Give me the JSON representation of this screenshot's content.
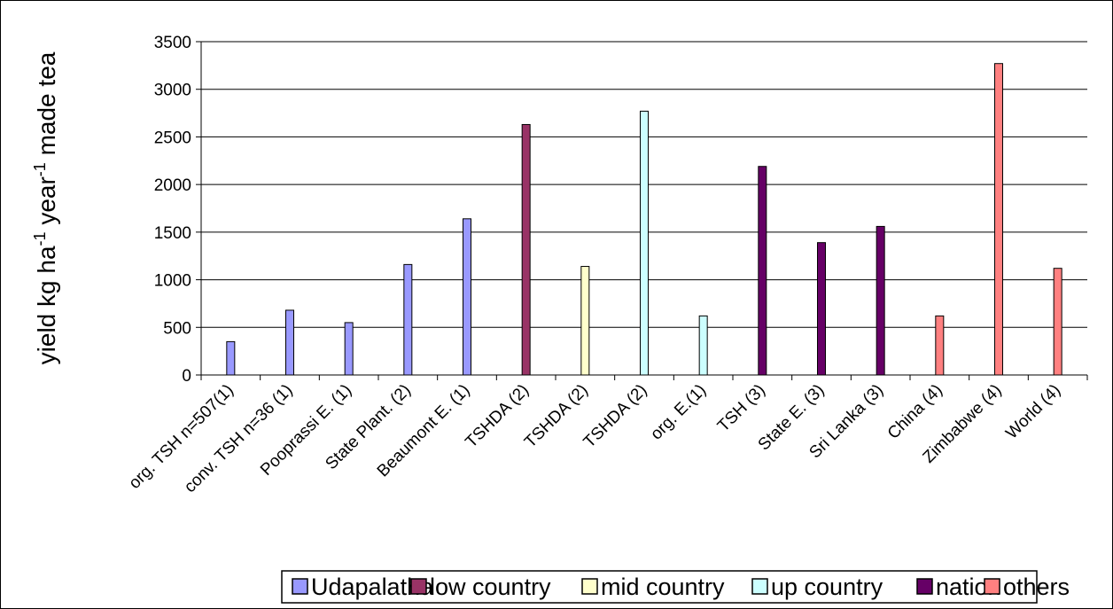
{
  "chart_data": {
    "type": "bar",
    "ylabel": {
      "prefix": "yield kg ha",
      "sup1": "-1",
      "middle": " year",
      "sup2": "-1",
      "suffix": " made tea"
    },
    "ylim": [
      0,
      3500
    ],
    "y_ticks": [
      0,
      500,
      1000,
      1500,
      2000,
      2500,
      3000,
      3500
    ],
    "grid": true,
    "legend_position": "bottom",
    "categories": [
      "org. TSH n=507(1)",
      "conv. TSH n=36 (1)",
      "Pooprassi E. (1)",
      "State Plant. (2)",
      "Beaumont E. (1)",
      "TSHDA (2)",
      "TSHDA (2)",
      "TSHDA (2)",
      "org. E.(1)",
      "TSH (3)",
      "State E. (3)",
      "Sri Lanka (3)",
      "China (4)",
      "Zimbabwe (4)",
      "World (4)"
    ],
    "series": [
      {
        "name": "Udapalatha",
        "color": "#9999ff",
        "values": [
          350,
          680,
          550,
          1160,
          1640,
          null,
          null,
          null,
          null,
          null,
          null,
          null,
          null,
          null,
          null
        ]
      },
      {
        "name": "low country",
        "color": "#993366",
        "values": [
          null,
          null,
          null,
          null,
          null,
          2630,
          null,
          null,
          null,
          null,
          null,
          null,
          null,
          null,
          null
        ]
      },
      {
        "name": "mid country",
        "color": "#ffffcc",
        "values": [
          null,
          null,
          null,
          null,
          null,
          null,
          1140,
          null,
          null,
          null,
          null,
          null,
          null,
          null,
          null
        ]
      },
      {
        "name": "up country",
        "color": "#ccffff",
        "values": [
          null,
          null,
          null,
          null,
          null,
          null,
          null,
          2770,
          620,
          null,
          null,
          null,
          null,
          null,
          null
        ]
      },
      {
        "name": "nation",
        "color": "#660066",
        "values": [
          null,
          null,
          null,
          null,
          null,
          null,
          null,
          null,
          null,
          2190,
          1390,
          1560,
          null,
          null,
          null
        ]
      },
      {
        "name": "others",
        "color": "#ff8080",
        "values": [
          null,
          null,
          null,
          null,
          null,
          null,
          null,
          null,
          null,
          null,
          null,
          null,
          620,
          3270,
          1120
        ]
      }
    ]
  }
}
